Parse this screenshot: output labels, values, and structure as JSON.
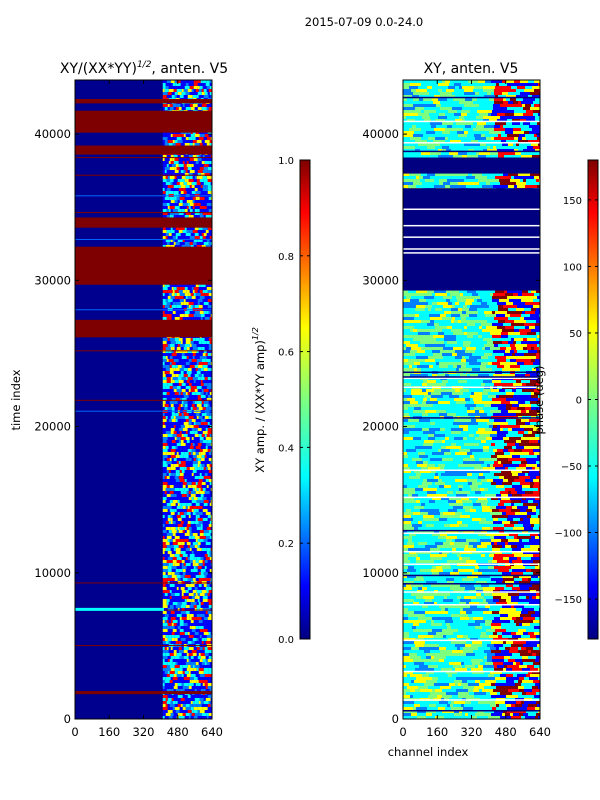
{
  "figure_title": "2015-07-09 0.0-24.0",
  "chart_data": [
    {
      "type": "heatmap",
      "title": "XY/(XX*YY)^{1/2}, anten. V5",
      "title_main": "XY/(XX*YY)",
      "title_sup": "1/2",
      "title_tail": ", anten. V5",
      "xlabel": "",
      "ylabel": "time index",
      "xlim": [
        0,
        640
      ],
      "ylim": [
        0,
        43700
      ],
      "xticks": [
        0,
        160,
        320,
        480,
        640
      ],
      "yticks": [
        0,
        10000,
        20000,
        30000,
        40000
      ],
      "colormap": "jet",
      "colorbar": {
        "label": "XY amp. / (XX*YY amp)",
        "label_sup": "1/2",
        "vmin": 0.0,
        "vmax": 1.0,
        "ticks": [
          "0.0",
          "0.2",
          "0.4",
          "0.6",
          "0.8",
          "1.0"
        ],
        "tick_values": [
          0.0,
          0.2,
          0.4,
          0.6,
          0.8,
          1.0
        ]
      },
      "saturated_time_bands": [
        [
          1700,
          1900
        ],
        [
          26100,
          27300
        ],
        [
          29700,
          32300
        ],
        [
          33600,
          34300
        ],
        [
          38600,
          39200
        ],
        [
          40100,
          41600
        ],
        [
          42100,
          42400
        ]
      ],
      "bright_channel_range": [
        410,
        640
      ]
    },
    {
      "type": "heatmap",
      "title": "XY, anten. V5",
      "xlabel": "channel index",
      "ylabel": "",
      "xlim": [
        0,
        640
      ],
      "ylim": [
        0,
        43700
      ],
      "xticks": [
        0,
        160,
        320,
        480,
        640
      ],
      "yticks": [
        0,
        10000,
        20000,
        30000,
        40000
      ],
      "colormap": "jet",
      "colorbar": {
        "label": "phase (deg)",
        "vmin": -180,
        "vmax": 180,
        "ticks": [
          "150",
          "100",
          "50",
          "0",
          "−50",
          "−100",
          "−150"
        ],
        "tick_values": [
          150,
          100,
          50,
          0,
          -50,
          -100,
          -150
        ]
      },
      "dark_time_bands": [
        [
          29300,
          36300
        ],
        [
          37300,
          38400
        ]
      ],
      "flagged_channel_range": [
        410,
        640
      ]
    }
  ],
  "colors": {
    "jet": [
      "#00007f",
      "#0000ff",
      "#007fff",
      "#00ffff",
      "#7fff7f",
      "#ffff00",
      "#ff7f00",
      "#ff0000",
      "#7f0000"
    ],
    "axes": "#000000",
    "background": "#ffffff"
  }
}
